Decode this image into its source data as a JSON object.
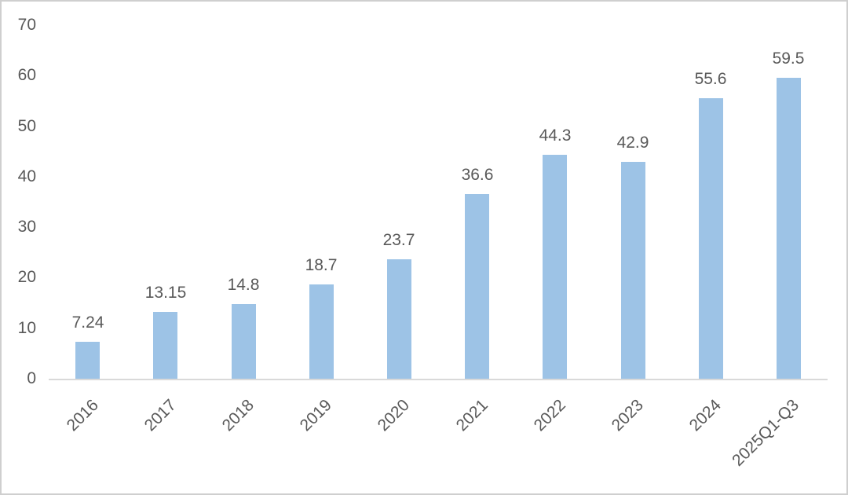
{
  "window": {
    "background": "#ffffff",
    "border_color": "#cfcfcf"
  },
  "chart_data": {
    "type": "bar",
    "categories": [
      "2016",
      "2017",
      "2018",
      "2019",
      "2020",
      "2021",
      "2022",
      "2023",
      "2024",
      "2025Q1-Q3"
    ],
    "values": [
      7.24,
      13.15,
      14.8,
      18.7,
      23.7,
      36.6,
      44.3,
      42.9,
      55.6,
      59.5
    ],
    "value_labels": [
      "7.24",
      "13.15",
      "14.8",
      "18.7",
      "23.7",
      "36.6",
      "44.3",
      "42.9",
      "55.6",
      "59.5"
    ],
    "title": "",
    "xlabel": "",
    "ylabel": "",
    "ylim": [
      0,
      70
    ],
    "yticks": [
      0,
      10,
      20,
      30,
      40,
      50,
      60,
      70
    ],
    "grid": false,
    "legend_position": "none",
    "x_tick_rotation_deg": 45,
    "bar_color": "#9DC3E6",
    "axis_line_color": "#D9D9D9",
    "label_color": "#595959"
  }
}
